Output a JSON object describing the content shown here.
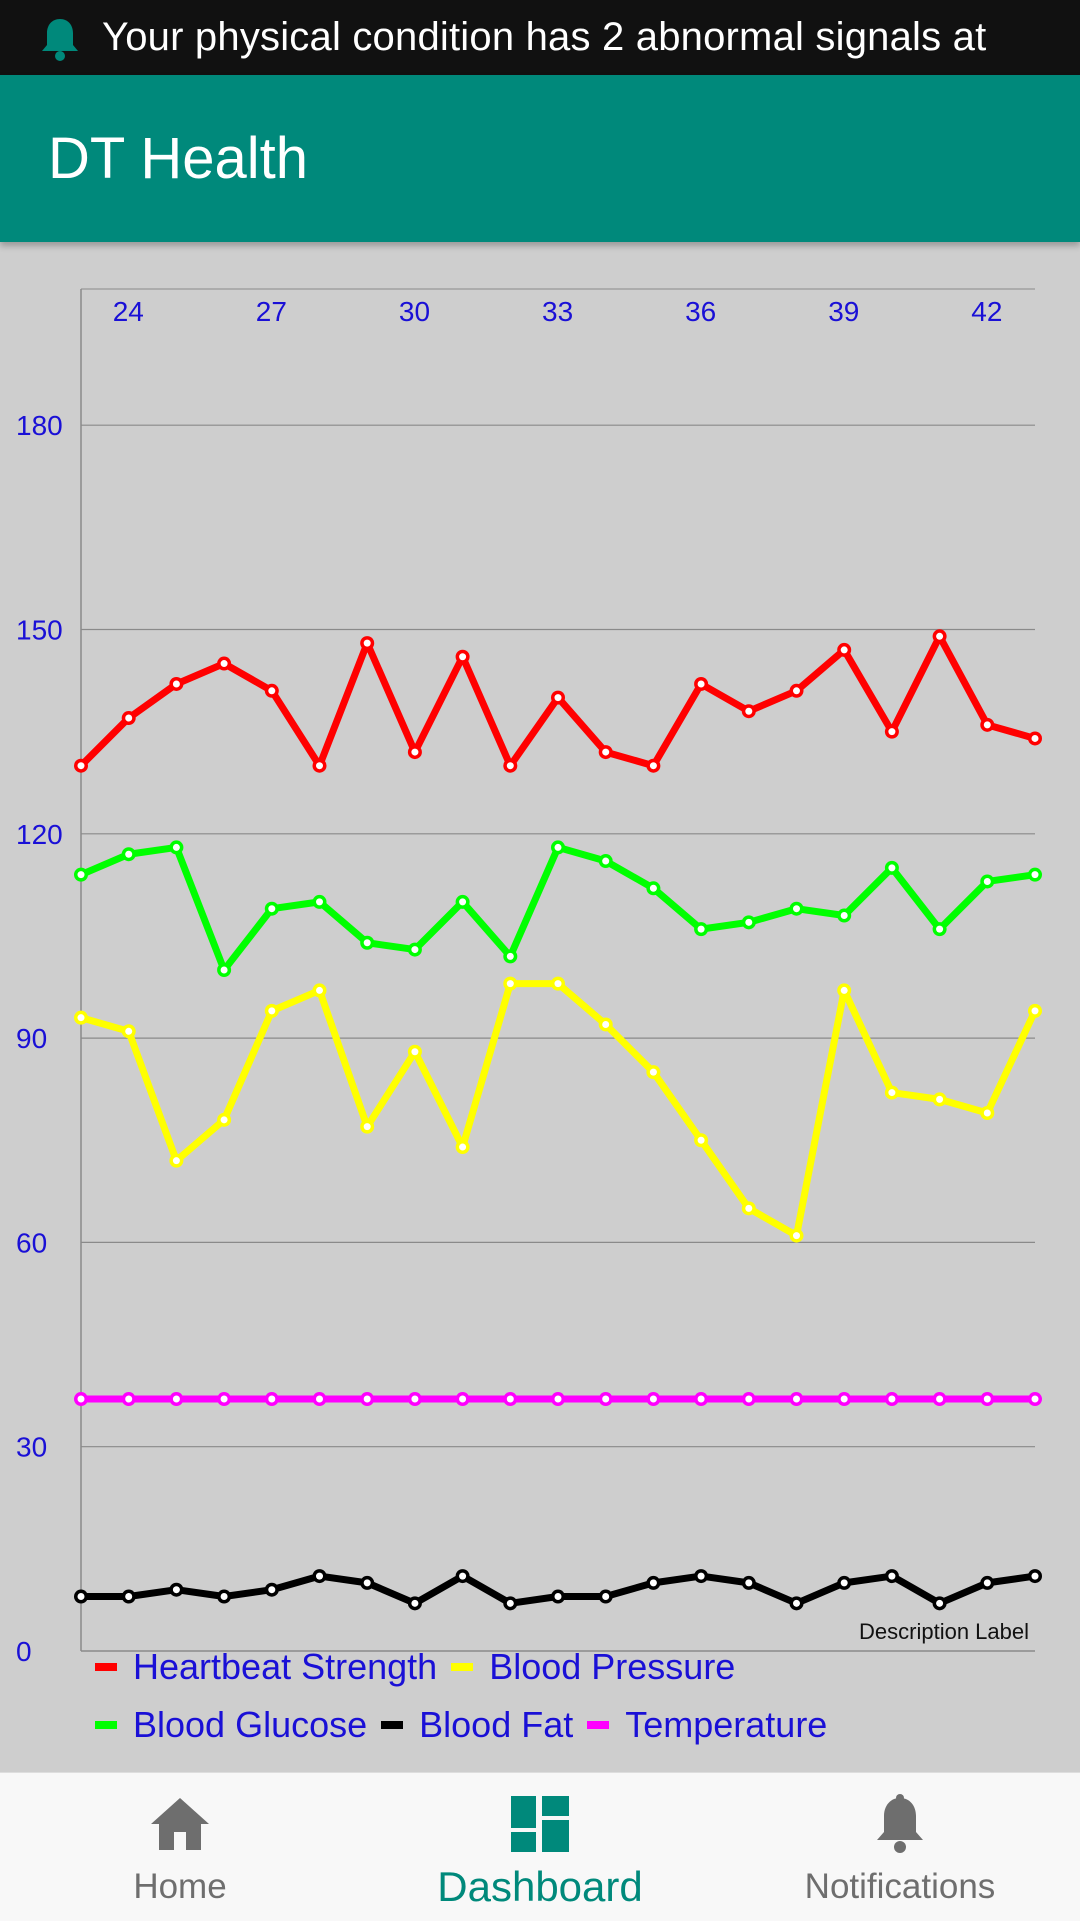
{
  "status_bar": {
    "notification_text": "Your physical condition has 2 abnormal signals at",
    "icon": "bell-icon",
    "icon_color": "#00897b"
  },
  "app_bar": {
    "title": "DT Health",
    "color": "#00897b"
  },
  "chart_data": {
    "type": "line",
    "x": [
      23,
      24,
      25,
      26,
      27,
      28,
      29,
      30,
      31,
      32,
      33,
      34,
      35,
      36,
      37,
      38,
      39,
      40,
      41,
      42,
      43
    ],
    "x_ticks": [
      "24",
      "27",
      "30",
      "33",
      "36",
      "39",
      "42"
    ],
    "y_ticks": [
      "0",
      "30",
      "60",
      "90",
      "120",
      "150",
      "180"
    ],
    "xlim": [
      23,
      43
    ],
    "ylim": [
      0,
      200
    ],
    "grid": true,
    "legend_placement": "bottom",
    "description_label": "Description Label",
    "series": [
      {
        "name": "Heartbeat Strength",
        "color": "#ff0000",
        "values": [
          130,
          137,
          142,
          145,
          141,
          130,
          148,
          132,
          146,
          130,
          140,
          132,
          130,
          142,
          138,
          141,
          147,
          135,
          149,
          136,
          134
        ]
      },
      {
        "name": "Blood Pressure",
        "color": "#ffff00",
        "values": [
          93,
          91,
          72,
          78,
          94,
          97,
          77,
          88,
          74,
          98,
          98,
          92,
          85,
          75,
          65,
          61,
          97,
          82,
          81,
          79,
          94
        ]
      },
      {
        "name": "Blood Glucose",
        "color": "#00ff00",
        "values": [
          114,
          117,
          118,
          100,
          109,
          110,
          104,
          103,
          110,
          102,
          118,
          116,
          112,
          106,
          107,
          109,
          108,
          115,
          106,
          113,
          114
        ]
      },
      {
        "name": "Blood Fat",
        "color": "#000000",
        "values": [
          8,
          8,
          9,
          8,
          9,
          11,
          10,
          7,
          11,
          7,
          8,
          8,
          10,
          11,
          10,
          7,
          10,
          11,
          7,
          10,
          11
        ]
      },
      {
        "name": "Temperature",
        "color": "#ff00ff",
        "values": [
          37,
          37,
          37,
          37,
          37,
          37,
          37,
          37,
          37,
          37,
          37,
          37,
          37,
          37,
          37,
          37,
          37,
          37,
          37,
          37,
          37
        ]
      }
    ]
  },
  "legend_rows": [
    [
      {
        "label": "Heartbeat Strength",
        "color": "#ff0000"
      },
      {
        "label": "Blood Pressure",
        "color": "#ffff00"
      }
    ],
    [
      {
        "label": "Blood Glucose",
        "color": "#00ff00"
      },
      {
        "label": "Blood Fat",
        "color": "#000000"
      },
      {
        "label": "Temperature",
        "color": "#ff00ff"
      }
    ]
  ],
  "bottom_nav": {
    "home_label": "Home",
    "dashboard_label": "Dashboard",
    "notifications_label": "Notifications",
    "active": "Dashboard",
    "active_color": "#00897b",
    "inactive_color": "#6e6e6e"
  }
}
